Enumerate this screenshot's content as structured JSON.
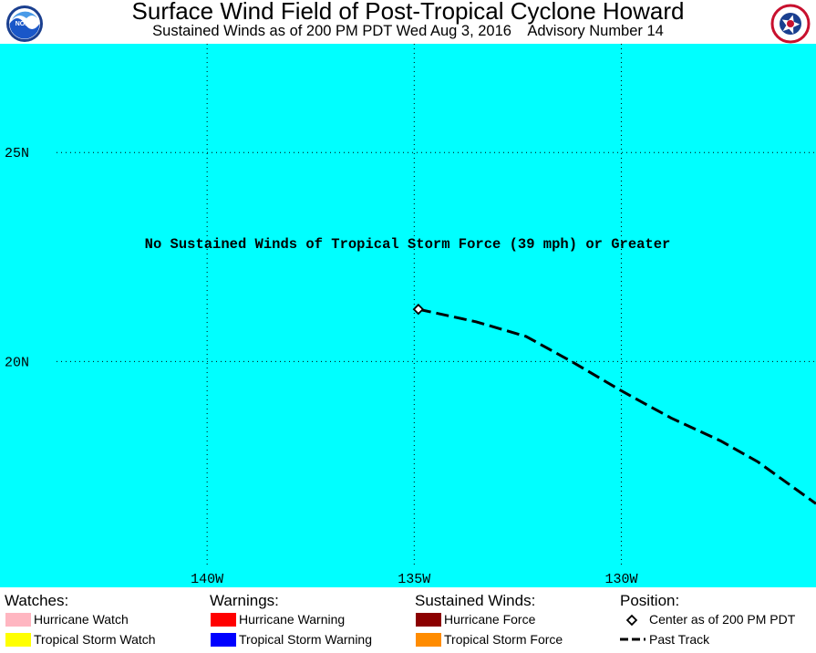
{
  "header": {
    "title": "Surface Wind Field of Post-Tropical Cyclone Howard",
    "subtitle": "Sustained Winds as of 200 PM PDT Wed Aug 3, 2016    Advisory Number 14",
    "left_logo": "NOAA",
    "right_logo": "National Weather Service"
  },
  "map": {
    "ocean_color": "#00ffff",
    "grid_style": "dotted",
    "lat_labels": [
      "25N",
      "20N"
    ],
    "lon_labels": [
      "140W",
      "135W",
      "130W"
    ],
    "latitudes": [
      25,
      20
    ],
    "longitudes": [
      140,
      135,
      130
    ],
    "lon_range": [
      145.0,
      125.3
    ],
    "lat_range": [
      27.6,
      14.6
    ],
    "message": "No Sustained Winds of Tropical Storm Force (39 mph) or Greater",
    "center": {
      "lon": 134.9,
      "lat": 21.25
    },
    "past_track": [
      {
        "lon": 134.9,
        "lat": 21.25
      },
      {
        "lon": 133.5,
        "lat": 20.95
      },
      {
        "lon": 132.3,
        "lat": 20.6
      },
      {
        "lon": 131.2,
        "lat": 20.0
      },
      {
        "lon": 130.0,
        "lat": 19.3
      },
      {
        "lon": 128.8,
        "lat": 18.65
      },
      {
        "lon": 127.6,
        "lat": 18.1
      },
      {
        "lon": 126.7,
        "lat": 17.6
      },
      {
        "lon": 125.3,
        "lat": 16.6
      }
    ]
  },
  "legend": {
    "watches": {
      "heading": "Watches:",
      "items": [
        {
          "label": "Hurricane Watch",
          "color": "#ffb6c1"
        },
        {
          "label": "Tropical Storm Watch",
          "color": "#ffff00"
        }
      ]
    },
    "warnings": {
      "heading": "Warnings:",
      "items": [
        {
          "label": "Hurricane Warning",
          "color": "#ff0000"
        },
        {
          "label": "Tropical Storm Warning",
          "color": "#0000ff"
        }
      ]
    },
    "sustained_winds": {
      "heading": "Sustained Winds:",
      "items": [
        {
          "label": "Hurricane Force",
          "color": "#8b0000"
        },
        {
          "label": "Tropical Storm Force",
          "color": "#ff8c00"
        }
      ]
    },
    "position": {
      "heading": "Position:",
      "items": [
        {
          "label": "Center as of 200 PM PDT",
          "icon": "diamond-icon"
        },
        {
          "label": "Past Track",
          "icon": "dashed-line-icon"
        }
      ]
    }
  }
}
